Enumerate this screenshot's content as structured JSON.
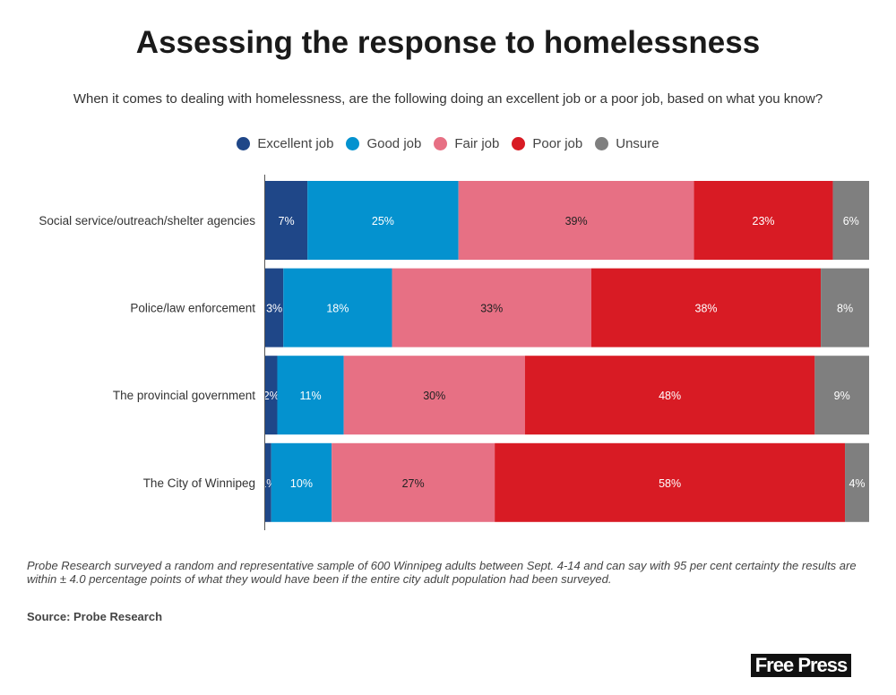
{
  "title": "Assessing the response to homelessness",
  "subtitle": "When it comes to dealing with homelessness, are the following doing an excellent job or a poor job, based on what you know?",
  "note": "Probe Research surveyed a random and representative sample of 600 Winnipeg adults between Sept. 4-14 and can say with 95 per cent certainty the results are within ± 4.0 percentage points of what they would have been if the entire city adult population had been surveyed.",
  "source": "Source: Probe Research",
  "logo_text": "Free Press",
  "chart_data": {
    "type": "bar",
    "orientation": "horizontal",
    "stacked": true,
    "legend_position": "top",
    "grid": false,
    "xlim": [
      0,
      100
    ],
    "categories": [
      "Social service/outreach/shelter agencies",
      "Police/law enforcement",
      "The provincial government",
      "The City of Winnipeg"
    ],
    "series": [
      {
        "name": "Excellent job",
        "color": "#1f4788",
        "values": [
          7,
          3,
          2,
          1
        ]
      },
      {
        "name": "Good job",
        "color": "#0492cf",
        "values": [
          25,
          18,
          11,
          10
        ]
      },
      {
        "name": "Fair job",
        "color": "#e77084",
        "values": [
          39,
          33,
          30,
          27
        ]
      },
      {
        "name": "Poor job",
        "color": "#d81b24",
        "values": [
          23,
          38,
          48,
          58
        ]
      },
      {
        "name": "Unsure",
        "color": "#7f7f7f",
        "values": [
          6,
          8,
          9,
          4
        ]
      }
    ]
  }
}
